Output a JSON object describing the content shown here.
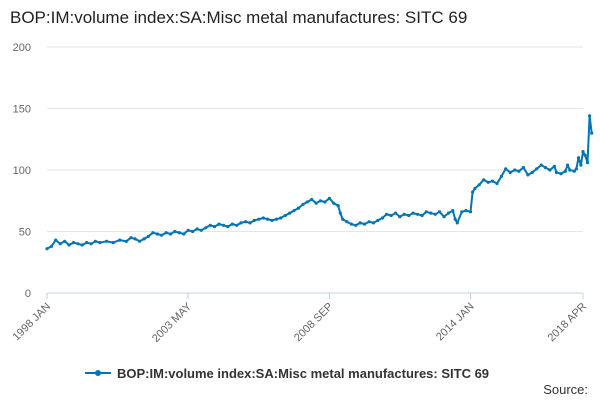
{
  "colors": {
    "series": "#0075b3",
    "grid": "#e6e6e6",
    "axis": "#c0d0e0",
    "text": "#222222"
  },
  "legend": {
    "label": "BOP:IM:volume index:SA:Misc metal manufactures: SITC 69",
    "icon": "line-marker-icon"
  },
  "source": {
    "label": "Source:"
  },
  "chart_data": {
    "type": "line",
    "title": "BOP:IM:volume index:SA:Misc metal manufactures: SITC 69",
    "xlabel": "",
    "ylabel": "",
    "ylim": [
      0,
      200
    ],
    "yticks": [
      0,
      50,
      100,
      150,
      200
    ],
    "xlim": [
      1998.0,
      2018.25
    ],
    "xticks": [
      {
        "value": 1998.0,
        "label": "1998 JAN"
      },
      {
        "value": 2003.33,
        "label": "2003 MAY"
      },
      {
        "value": 2008.67,
        "label": "2008 SEP"
      },
      {
        "value": 2014.0,
        "label": "2014 JAN"
      },
      {
        "value": 2018.25,
        "label": "2018 APR"
      }
    ],
    "grid": true,
    "legend_position": "bottom",
    "series": [
      {
        "name": "BOP:IM:volume index:SA:Misc metal manufactures: SITC 69",
        "points": [
          [
            1998.0,
            36
          ],
          [
            1998.17,
            38
          ],
          [
            1998.33,
            43
          ],
          [
            1998.5,
            40
          ],
          [
            1998.67,
            42
          ],
          [
            1998.83,
            39
          ],
          [
            1999.0,
            41
          ],
          [
            1999.17,
            40
          ],
          [
            1999.33,
            39
          ],
          [
            1999.5,
            41
          ],
          [
            1999.67,
            40
          ],
          [
            1999.83,
            42
          ],
          [
            2000.0,
            41
          ],
          [
            2000.25,
            42
          ],
          [
            2000.5,
            41
          ],
          [
            2000.75,
            43
          ],
          [
            2001.0,
            42
          ],
          [
            2001.17,
            45
          ],
          [
            2001.33,
            44
          ],
          [
            2001.5,
            42
          ],
          [
            2001.67,
            44
          ],
          [
            2001.83,
            46
          ],
          [
            2002.0,
            49
          ],
          [
            2002.17,
            48
          ],
          [
            2002.33,
            47
          ],
          [
            2002.5,
            49
          ],
          [
            2002.67,
            48
          ],
          [
            2002.83,
            50
          ],
          [
            2003.0,
            49
          ],
          [
            2003.17,
            48
          ],
          [
            2003.33,
            51
          ],
          [
            2003.5,
            50
          ],
          [
            2003.67,
            52
          ],
          [
            2003.83,
            51
          ],
          [
            2004.0,
            53
          ],
          [
            2004.17,
            55
          ],
          [
            2004.33,
            54
          ],
          [
            2004.5,
            56
          ],
          [
            2004.67,
            55
          ],
          [
            2004.83,
            54
          ],
          [
            2005.0,
            56
          ],
          [
            2005.17,
            55
          ],
          [
            2005.33,
            57
          ],
          [
            2005.5,
            58
          ],
          [
            2005.67,
            57
          ],
          [
            2005.83,
            59
          ],
          [
            2006.0,
            60
          ],
          [
            2006.17,
            61
          ],
          [
            2006.33,
            60
          ],
          [
            2006.5,
            59
          ],
          [
            2006.67,
            60
          ],
          [
            2006.83,
            61
          ],
          [
            2007.0,
            63
          ],
          [
            2007.17,
            65
          ],
          [
            2007.33,
            67
          ],
          [
            2007.5,
            69
          ],
          [
            2007.67,
            72
          ],
          [
            2007.83,
            74
          ],
          [
            2008.0,
            76
          ],
          [
            2008.17,
            73
          ],
          [
            2008.33,
            75
          ],
          [
            2008.5,
            74
          ],
          [
            2008.67,
            77
          ],
          [
            2008.83,
            73
          ],
          [
            2009.0,
            71
          ],
          [
            2009.08,
            65
          ],
          [
            2009.17,
            60
          ],
          [
            2009.33,
            58
          ],
          [
            2009.5,
            56
          ],
          [
            2009.67,
            55
          ],
          [
            2009.83,
            57
          ],
          [
            2010.0,
            56
          ],
          [
            2010.17,
            58
          ],
          [
            2010.33,
            57
          ],
          [
            2010.5,
            59
          ],
          [
            2010.67,
            61
          ],
          [
            2010.83,
            64
          ],
          [
            2011.0,
            63
          ],
          [
            2011.17,
            65
          ],
          [
            2011.33,
            62
          ],
          [
            2011.5,
            64
          ],
          [
            2011.67,
            63
          ],
          [
            2011.83,
            65
          ],
          [
            2012.0,
            64
          ],
          [
            2012.17,
            63
          ],
          [
            2012.33,
            66
          ],
          [
            2012.5,
            65
          ],
          [
            2012.67,
            64
          ],
          [
            2012.83,
            66
          ],
          [
            2013.0,
            62
          ],
          [
            2013.17,
            65
          ],
          [
            2013.33,
            67
          ],
          [
            2013.42,
            60
          ],
          [
            2013.5,
            57
          ],
          [
            2013.67,
            66
          ],
          [
            2013.83,
            67
          ],
          [
            2014.0,
            66
          ],
          [
            2014.08,
            82
          ],
          [
            2014.17,
            85
          ],
          [
            2014.33,
            88
          ],
          [
            2014.5,
            92
          ],
          [
            2014.67,
            90
          ],
          [
            2014.83,
            91
          ],
          [
            2015.0,
            89
          ],
          [
            2015.17,
            95
          ],
          [
            2015.33,
            101
          ],
          [
            2015.5,
            98
          ],
          [
            2015.67,
            100
          ],
          [
            2015.83,
            99
          ],
          [
            2016.0,
            102
          ],
          [
            2016.17,
            96
          ],
          [
            2016.33,
            98
          ],
          [
            2016.5,
            101
          ],
          [
            2016.67,
            104
          ],
          [
            2016.83,
            102
          ],
          [
            2017.0,
            100
          ],
          [
            2017.17,
            103
          ],
          [
            2017.25,
            98
          ],
          [
            2017.42,
            97
          ],
          [
            2017.58,
            99
          ],
          [
            2017.67,
            104
          ],
          [
            2017.75,
            100
          ],
          [
            2017.92,
            99
          ],
          [
            2018.0,
            101
          ],
          [
            2018.08,
            110
          ],
          [
            2018.17,
            104
          ],
          [
            2018.25,
            115
          ],
          [
            2018.33,
            112
          ],
          [
            2018.42,
            106
          ],
          [
            2018.5,
            144
          ],
          [
            2018.58,
            130
          ]
        ]
      }
    ]
  }
}
